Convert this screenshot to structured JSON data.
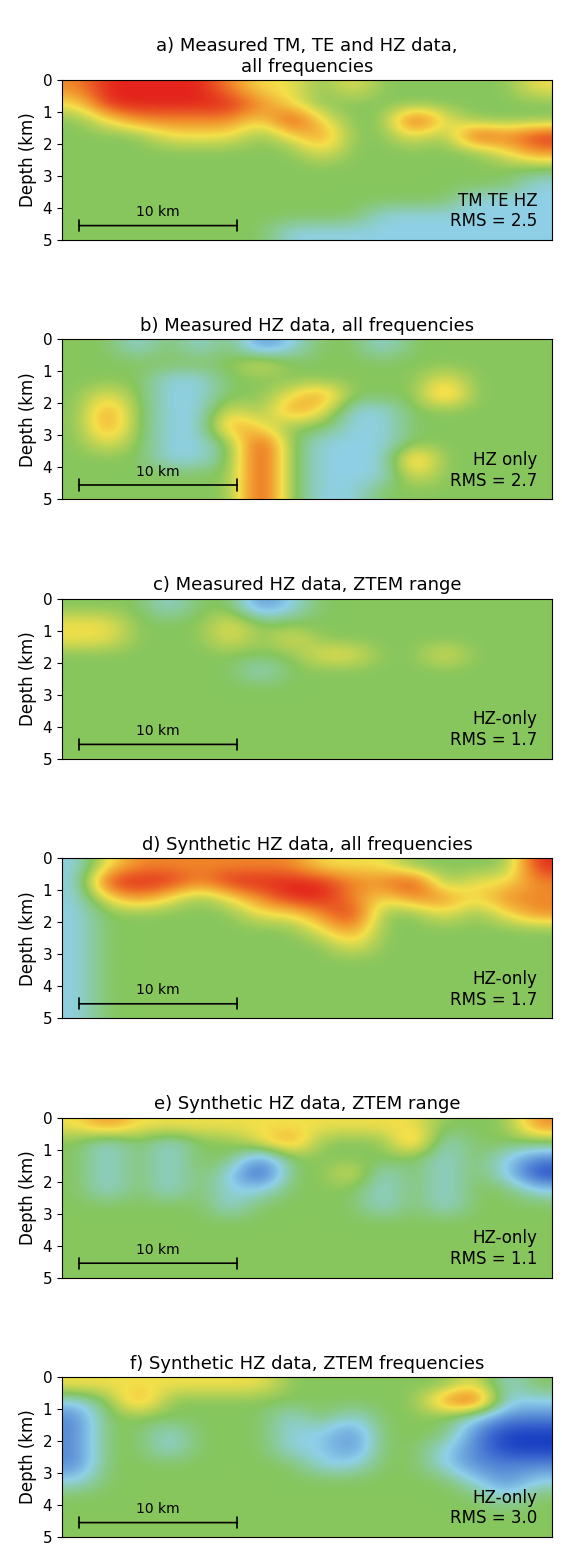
{
  "chart_data": [
    {
      "type": "heatmap",
      "title": "a) Measured TM, TE and HZ data,\nall frequencies",
      "annotation": "TM TE HZ\nRMS = 2.5",
      "ylabel": "Depth (km)",
      "xlim": [
        0,
        31
      ],
      "ylim": [
        5,
        0
      ],
      "yticks": [
        0,
        1,
        2,
        3,
        4,
        5
      ],
      "tick_labels": "y",
      "scale_bar": {
        "length": 10,
        "label": "10 km"
      },
      "color_range": [
        -3,
        3
      ],
      "cells": [
        [
          2,
          3,
          3,
          3,
          3,
          2,
          1,
          1,
          0,
          1,
          0,
          0,
          0,
          0,
          0,
          1
        ],
        [
          1,
          3,
          3,
          3,
          3,
          3,
          2,
          1,
          0,
          0,
          0,
          0,
          0,
          0,
          0,
          0
        ],
        [
          0,
          1,
          2,
          2,
          2,
          2,
          1,
          3,
          1,
          0,
          0,
          3,
          1,
          0,
          0,
          0
        ],
        [
          0,
          0,
          0,
          1,
          1,
          1,
          0,
          1,
          2,
          0,
          0,
          1,
          0,
          3,
          2,
          3
        ],
        [
          0,
          0,
          0,
          0,
          0,
          0,
          0,
          0,
          1,
          0,
          0,
          0,
          0,
          0,
          1,
          2
        ],
        [
          0,
          0,
          0,
          0,
          0,
          0,
          0,
          0,
          0,
          0,
          0,
          0,
          0,
          0,
          0,
          0
        ],
        [
          0,
          0,
          0,
          0,
          0,
          0,
          0,
          0,
          0,
          0,
          0,
          0,
          0,
          0,
          0,
          -1
        ],
        [
          0,
          0,
          0,
          0,
          0,
          0,
          0,
          0,
          0,
          0,
          0,
          0,
          0,
          -1,
          -1,
          -1
        ],
        [
          0,
          0,
          0,
          0,
          0,
          0,
          0,
          0,
          0,
          0,
          -1,
          -1,
          -1,
          -1,
          -1,
          -1
        ],
        [
          0,
          0,
          0,
          0,
          0,
          0,
          0,
          -1,
          -1,
          -1,
          -1,
          -1,
          -1,
          -1,
          -1,
          -1
        ]
      ]
    },
    {
      "type": "heatmap",
      "title": "b) Measured HZ data, all frequencies",
      "annotation": "HZ only\nRMS = 2.7",
      "ylabel": "Depth (km)",
      "xlim": [
        0,
        31
      ],
      "ylim": [
        5,
        0
      ],
      "yticks": [
        0,
        1,
        2,
        3,
        4,
        5
      ],
      "tick_labels": "y",
      "scale_bar": {
        "length": 10,
        "label": "10 km"
      },
      "color_range": [
        -3,
        3
      ],
      "cells": [
        [
          0,
          0,
          -1,
          0,
          -1,
          0,
          -2,
          -1,
          0,
          0,
          -1,
          0,
          0,
          0,
          0,
          0
        ],
        [
          0,
          0,
          0,
          0,
          0,
          0,
          1,
          0,
          0,
          0,
          0,
          0,
          0,
          0,
          0,
          0
        ],
        [
          0,
          0,
          0,
          -1,
          -1,
          0,
          0,
          0,
          0,
          0,
          0,
          0,
          1,
          0,
          0,
          0
        ],
        [
          0,
          1,
          0,
          -1,
          -1,
          0,
          0,
          1,
          2,
          0,
          0,
          0,
          2,
          0,
          0,
          0
        ],
        [
          0,
          2,
          0,
          -1,
          -1,
          1,
          0,
          2,
          1,
          -1,
          -1,
          0,
          0,
          0,
          0,
          0
        ],
        [
          0,
          2,
          0,
          -1,
          -1,
          2,
          1,
          0,
          0,
          -1,
          -1,
          0,
          0,
          0,
          0,
          0
        ],
        [
          0,
          1,
          0,
          -1,
          -1,
          0,
          3,
          0,
          -1,
          -1,
          -1,
          0,
          0,
          0,
          0,
          0
        ],
        [
          0,
          0,
          0,
          -1,
          -1,
          0,
          3,
          0,
          -1,
          -1,
          -1,
          2,
          0,
          0,
          0,
          0
        ],
        [
          0,
          0,
          0,
          0,
          0,
          0,
          3,
          0,
          -1,
          -1,
          -1,
          1,
          0,
          0,
          0,
          0
        ],
        [
          0,
          0,
          0,
          0,
          0,
          0,
          3,
          0,
          -1,
          -1,
          0,
          0,
          0,
          0,
          0,
          0
        ]
      ]
    },
    {
      "type": "heatmap",
      "title": "c) Measured HZ data, ZTEM range",
      "annotation": "HZ-only\nRMS = 1.7",
      "ylabel": "Depth (km)",
      "xlim": [
        0,
        31
      ],
      "ylim": [
        5,
        0
      ],
      "yticks": [
        0,
        1,
        2,
        3,
        4,
        5
      ],
      "tick_labels": "y",
      "scale_bar": {
        "length": 10,
        "label": "10 km"
      },
      "color_range": [
        -3,
        3
      ],
      "cells": [
        [
          0,
          0,
          0,
          -1,
          0,
          0,
          -2,
          -1,
          0,
          0,
          0,
          0,
          0,
          0,
          0,
          0
        ],
        [
          1,
          1,
          0,
          0,
          0,
          1,
          0,
          0,
          0,
          0,
          0,
          0,
          0,
          0,
          0,
          0
        ],
        [
          1,
          1,
          0,
          0,
          0,
          1,
          0,
          1,
          0,
          0,
          0,
          0,
          0,
          0,
          0,
          0
        ],
        [
          0,
          0,
          0,
          0,
          0,
          0,
          0,
          0,
          1,
          1,
          0,
          0,
          1,
          0,
          0,
          0
        ],
        [
          0,
          0,
          0,
          0,
          0,
          0,
          -1,
          0,
          0,
          0,
          0,
          0,
          0,
          0,
          0,
          0
        ],
        [
          0,
          0,
          0,
          0,
          0,
          0,
          0,
          0,
          0,
          0,
          0,
          0,
          0,
          0,
          0,
          0
        ],
        [
          0,
          0,
          0,
          0,
          0,
          0,
          0,
          0,
          0,
          0,
          0,
          0,
          0,
          0,
          0,
          0
        ],
        [
          0,
          0,
          0,
          0,
          0,
          0,
          0,
          0,
          0,
          0,
          0,
          0,
          0,
          0,
          0,
          0
        ],
        [
          0,
          0,
          0,
          0,
          0,
          0,
          0,
          0,
          0,
          0,
          0,
          0,
          0,
          0,
          0,
          0
        ],
        [
          0,
          0,
          0,
          0,
          0,
          0,
          0,
          0,
          0,
          0,
          0,
          0,
          0,
          0,
          0,
          0
        ]
      ]
    },
    {
      "type": "heatmap",
      "title": "d) Synthetic HZ data, all frequencies",
      "annotation": "HZ-only\nRMS = 1.7",
      "ylabel": "Depth (km)",
      "xlim": [
        0,
        31
      ],
      "ylim": [
        5,
        0
      ],
      "yticks": [
        0,
        1,
        2,
        3,
        4,
        5
      ],
      "tick_labels": "y",
      "scale_bar": {
        "length": 10,
        "label": "10 km"
      },
      "color_range": [
        -3,
        3
      ],
      "cells": [
        [
          -1,
          1,
          2,
          2,
          2,
          2,
          2,
          2,
          1,
          1,
          1,
          0,
          0,
          0,
          0,
          3
        ],
        [
          -1,
          3,
          3,
          3,
          2,
          3,
          3,
          3,
          3,
          2,
          2,
          3,
          0,
          1,
          1,
          2
        ],
        [
          -1,
          1,
          2,
          1,
          0,
          1,
          2,
          3,
          3,
          2,
          1,
          2,
          2,
          1,
          2,
          2
        ],
        [
          -1,
          0,
          0,
          0,
          0,
          0,
          1,
          1,
          2,
          3,
          0,
          0,
          1,
          0,
          1,
          2
        ],
        [
          -1,
          0,
          0,
          0,
          0,
          0,
          0,
          0,
          1,
          2,
          0,
          0,
          0,
          0,
          0,
          0
        ],
        [
          -1,
          0,
          0,
          0,
          0,
          0,
          0,
          0,
          0,
          1,
          0,
          0,
          0,
          0,
          0,
          0
        ],
        [
          -1,
          0,
          0,
          0,
          0,
          0,
          0,
          0,
          0,
          0,
          0,
          0,
          0,
          0,
          0,
          0
        ],
        [
          -1,
          0,
          0,
          0,
          0,
          0,
          0,
          0,
          0,
          0,
          0,
          0,
          0,
          0,
          0,
          0
        ],
        [
          -1,
          0,
          0,
          0,
          0,
          0,
          0,
          0,
          0,
          0,
          0,
          0,
          0,
          0,
          0,
          0
        ],
        [
          -1,
          0,
          0,
          0,
          0,
          0,
          0,
          0,
          0,
          0,
          0,
          0,
          0,
          0,
          0,
          0
        ]
      ]
    },
    {
      "type": "heatmap",
      "title": "e) Synthetic HZ data, ZTEM range",
      "annotation": "HZ-only\nRMS = 1.1",
      "ylabel": "Depth (km)",
      "xlim": [
        0,
        31
      ],
      "ylim": [
        5,
        0
      ],
      "yticks": [
        0,
        1,
        2,
        3,
        4,
        5
      ],
      "tick_labels": "y",
      "scale_bar": {
        "length": 10,
        "label": "10 km"
      },
      "color_range": [
        -3,
        3
      ],
      "cells": [
        [
          1,
          2,
          1,
          1,
          1,
          1,
          1,
          1,
          1,
          1,
          1,
          1,
          0,
          0,
          0,
          2
        ],
        [
          0,
          -1,
          0,
          -1,
          0,
          0,
          1,
          2,
          0,
          0,
          0,
          2,
          -1,
          0,
          0,
          0
        ],
        [
          0,
          -1,
          0,
          -1,
          0,
          0,
          -2,
          0,
          0,
          0,
          0,
          0,
          -1,
          0,
          -1,
          -2
        ],
        [
          0,
          -1,
          0,
          -1,
          0,
          -1,
          -3,
          0,
          0,
          1,
          -1,
          0,
          -1,
          0,
          -1,
          -3
        ],
        [
          0,
          -1,
          0,
          -1,
          0,
          -1,
          -1,
          0,
          0,
          0,
          -1,
          0,
          -1,
          0,
          0,
          -1
        ],
        [
          0,
          0,
          0,
          0,
          0,
          -1,
          0,
          0,
          0,
          0,
          -1,
          0,
          -1,
          0,
          0,
          0
        ],
        [
          0,
          0,
          0,
          0,
          0,
          0,
          0,
          0,
          0,
          0,
          0,
          0,
          0,
          0,
          0,
          0
        ],
        [
          0,
          0,
          0,
          0,
          0,
          0,
          0,
          0,
          0,
          0,
          0,
          0,
          0,
          0,
          0,
          0
        ],
        [
          0,
          0,
          0,
          0,
          0,
          0,
          0,
          0,
          0,
          0,
          0,
          0,
          0,
          0,
          0,
          0
        ],
        [
          0,
          0,
          0,
          0,
          0,
          0,
          0,
          0,
          0,
          0,
          0,
          0,
          0,
          0,
          0,
          0
        ]
      ]
    },
    {
      "type": "heatmap",
      "title": "f) Synthetic HZ data, ZTEM frequencies",
      "annotation": "HZ-only\nRMS = 3.0",
      "ylabel": "Depth (km)",
      "xlim": [
        0,
        31
      ],
      "ylim": [
        5,
        0
      ],
      "yticks": [
        0,
        1,
        2,
        3,
        4,
        5
      ],
      "tick_labels": "y",
      "scale_bar": {
        "length": 10,
        "label": "10 km"
      },
      "color_range": [
        -3,
        3
      ],
      "cells": [
        [
          1,
          1,
          1,
          1,
          1,
          1,
          1,
          0,
          0,
          0,
          0,
          0,
          0,
          1,
          -1,
          0
        ],
        [
          -1,
          0,
          2,
          0,
          0,
          0,
          0,
          0,
          0,
          0,
          0,
          0,
          2,
          3,
          -1,
          -1
        ],
        [
          -2,
          0,
          0,
          0,
          0,
          0,
          0,
          -1,
          0,
          -1,
          0,
          0,
          0,
          -1,
          -2,
          -2
        ],
        [
          -2,
          0,
          0,
          -1,
          0,
          0,
          0,
          -1,
          -1,
          -2,
          0,
          0,
          0,
          -2,
          -3,
          -3
        ],
        [
          -2,
          0,
          0,
          -1,
          0,
          0,
          0,
          -1,
          -1,
          -2,
          0,
          0,
          -1,
          -2,
          -3,
          -3
        ],
        [
          -2,
          0,
          0,
          0,
          0,
          0,
          0,
          0,
          -1,
          -1,
          0,
          0,
          -1,
          -2,
          -2,
          -2
        ],
        [
          -1,
          0,
          0,
          0,
          0,
          0,
          0,
          0,
          0,
          0,
          0,
          0,
          0,
          -1,
          -2,
          -1
        ],
        [
          0,
          0,
          0,
          0,
          0,
          0,
          0,
          0,
          0,
          0,
          0,
          0,
          0,
          0,
          -1,
          0
        ],
        [
          0,
          0,
          0,
          0,
          0,
          0,
          0,
          0,
          0,
          0,
          0,
          0,
          0,
          0,
          0,
          0
        ],
        [
          0,
          0,
          0,
          0,
          0,
          0,
          0,
          0,
          0,
          0,
          0,
          0,
          0,
          0,
          0,
          0
        ]
      ]
    }
  ]
}
